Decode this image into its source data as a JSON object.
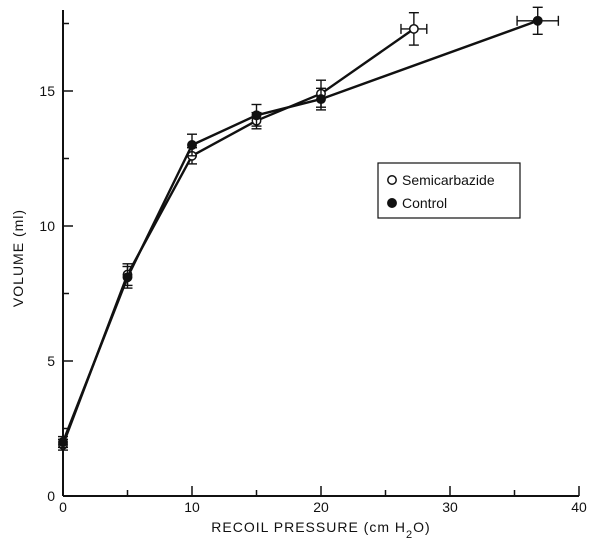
{
  "chart_data": {
    "type": "line",
    "title": "",
    "xlabel_parts": [
      "RECOIL PRESSURE (cm H",
      "2",
      "O)"
    ],
    "ylabel": "VOLUME (ml)",
    "xlim": [
      0,
      40
    ],
    "ylim": [
      0,
      18
    ],
    "x_ticks": [
      0,
      10,
      20,
      30,
      40
    ],
    "y_ticks": [
      0,
      5,
      10,
      15
    ],
    "grid": false,
    "legend_placement": "right",
    "series": [
      {
        "name": "Semicarbazide",
        "marker": "open-circle",
        "points": [
          {
            "x": 0,
            "y": 1.9,
            "yerr": 0.2,
            "xerr": 0
          },
          {
            "x": 5,
            "y": 8.2,
            "yerr": 0.4,
            "xerr": 0
          },
          {
            "x": 10,
            "y": 12.6,
            "yerr": 0.3,
            "xerr": 0
          },
          {
            "x": 15,
            "y": 13.9,
            "yerr": 0.3,
            "xerr": 0
          },
          {
            "x": 20,
            "y": 14.9,
            "yerr": 0.5,
            "xerr": 0
          },
          {
            "x": 27.2,
            "y": 17.3,
            "yerr": 0.6,
            "xerr": 1.0
          }
        ]
      },
      {
        "name": "Control",
        "marker": "filled-circle",
        "points": [
          {
            "x": 0,
            "y": 2.0,
            "yerr": 0.2,
            "xerr": 0
          },
          {
            "x": 5,
            "y": 8.1,
            "yerr": 0.4,
            "xerr": 0
          },
          {
            "x": 10,
            "y": 13.0,
            "yerr": 0.4,
            "xerr": 0
          },
          {
            "x": 15,
            "y": 14.1,
            "yerr": 0.4,
            "xerr": 0
          },
          {
            "x": 20,
            "y": 14.7,
            "yerr": 0.4,
            "xerr": 0
          },
          {
            "x": 36.8,
            "y": 17.6,
            "yerr": 0.5,
            "xerr": 1.6
          }
        ]
      }
    ]
  }
}
